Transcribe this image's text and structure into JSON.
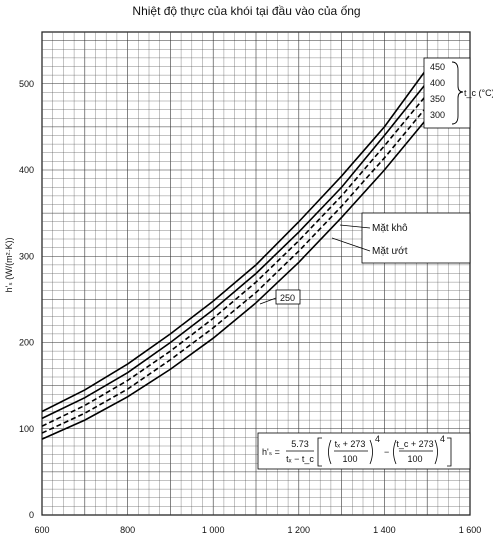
{
  "chart_data": {
    "type": "line",
    "title": "Nhiệt độ thực của khói tại đầu vào của ống",
    "ylabel": "h'ₛ (W/(m²·K))",
    "xlim": [
      600,
      1600
    ],
    "ylim": [
      0,
      560
    ],
    "x_ticks": [
      "600",
      "800",
      "1 000",
      "1 200",
      "1 400",
      "1 600"
    ],
    "y_ticks": [
      "0",
      "100",
      "200",
      "300",
      "400",
      "500"
    ],
    "grid": true,
    "legend_title": "t_c (°C)",
    "series": [
      {
        "name": "450",
        "style": "solid",
        "x": [
          600,
          700,
          800,
          900,
          1000,
          1100,
          1200,
          1300,
          1400,
          1500
        ],
        "y": [
          120,
          145,
          175,
          210,
          248,
          290,
          340,
          393,
          450,
          518
        ]
      },
      {
        "name": "400",
        "style": "solid",
        "x": [
          600,
          700,
          800,
          900,
          1000,
          1100,
          1200,
          1300,
          1400,
          1500
        ],
        "y": [
          112,
          136,
          165,
          200,
          238,
          280,
          328,
          380,
          440,
          502
        ]
      },
      {
        "name": "350",
        "style": "dashed",
        "x": [
          600,
          700,
          800,
          900,
          1000,
          1100,
          1200,
          1300,
          1400,
          1500
        ],
        "y": [
          103,
          127,
          156,
          190,
          228,
          270,
          318,
          370,
          428,
          488
        ]
      },
      {
        "name": "300",
        "style": "dashed",
        "x": [
          600,
          700,
          800,
          900,
          1000,
          1100,
          1200,
          1300,
          1400,
          1500
        ],
        "y": [
          95,
          118,
          146,
          180,
          217,
          258,
          306,
          358,
          414,
          474
        ]
      },
      {
        "name": "250",
        "style": "solid",
        "x": [
          600,
          700,
          800,
          900,
          1000,
          1100,
          1200,
          1300,
          1400,
          1500
        ],
        "y": [
          88,
          110,
          137,
          169,
          205,
          246,
          293,
          345,
          400,
          460
        ]
      }
    ],
    "annotations": [
      {
        "text": "Mặt khô"
      },
      {
        "text": "Mặt ướt"
      },
      {
        "text": "250"
      }
    ],
    "formula": {
      "lhs": "h'ₛ =",
      "coef_num": "5.73",
      "coef_den": "tₓ − t_c",
      "term1_num": "tₓ + 273",
      "term1_den": "100",
      "term2_num": "t_c + 273",
      "term2_den": "100",
      "exp": "4"
    }
  }
}
